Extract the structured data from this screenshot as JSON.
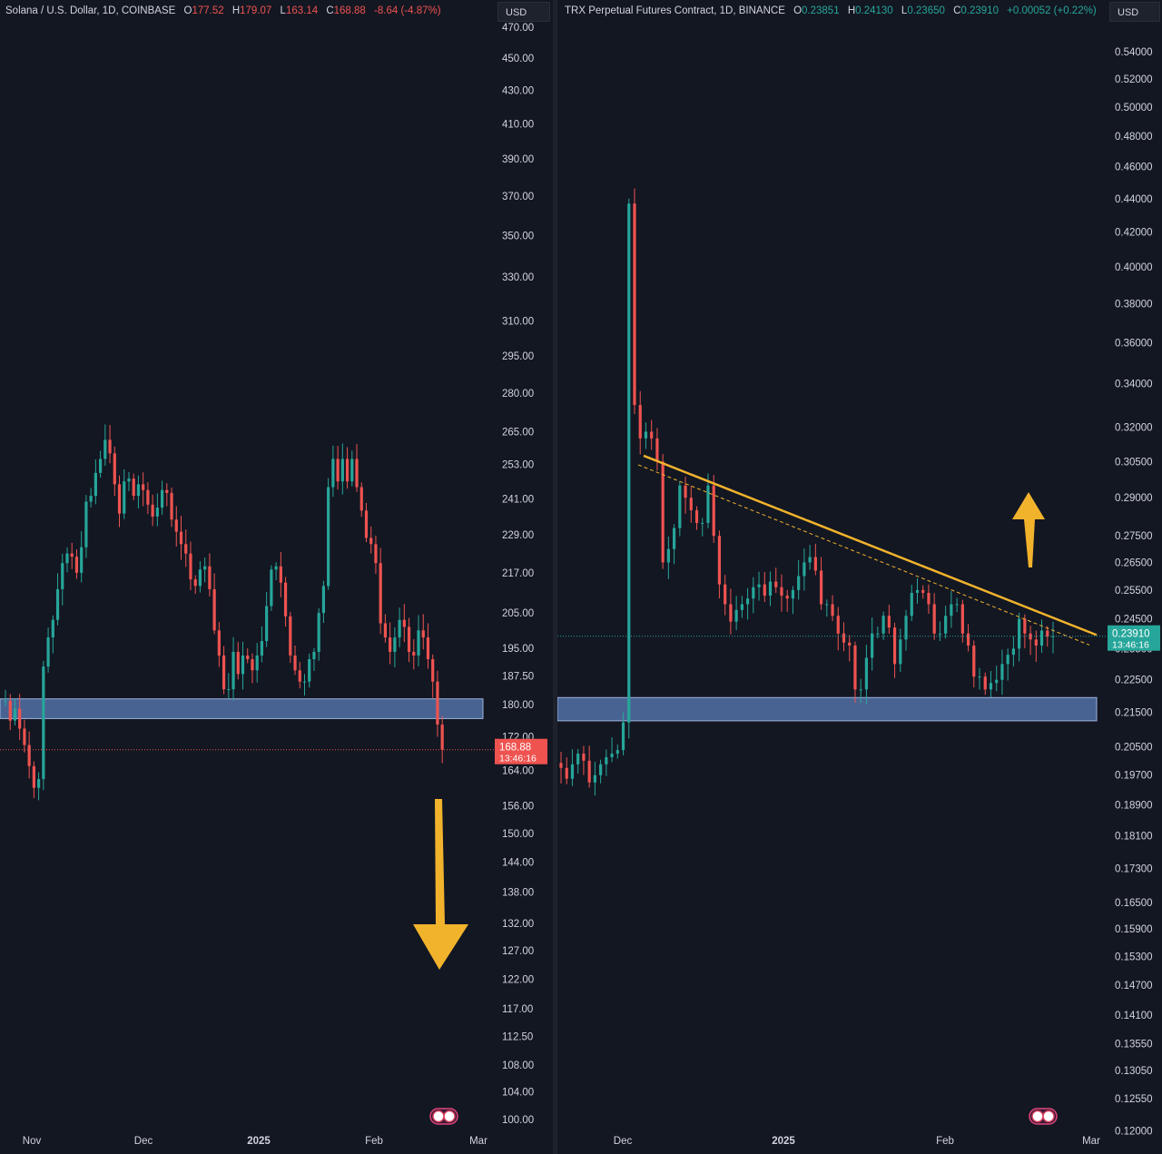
{
  "chart_data": [
    {
      "type": "candlestick",
      "title": "Solana / U.S. Dollar, 1D, COINBASE",
      "ohlc": {
        "O": "177.52",
        "H": "179.07",
        "L": "163.14",
        "C": "168.88",
        "change": "-8.64 (-4.87%)"
      },
      "currency": "USD",
      "scale": "log",
      "y_ticks": [
        "470.00",
        "450.00",
        "430.00",
        "410.00",
        "390.00",
        "370.00",
        "350.00",
        "330.00",
        "310.00",
        "295.00",
        "280.00",
        "265.00",
        "253.00",
        "241.00",
        "229.00",
        "217.00",
        "205.00",
        "195.00",
        "187.50",
        "180.00",
        "172.00",
        "164.00",
        "156.00",
        "150.00",
        "144.00",
        "138.00",
        "132.00",
        "127.00",
        "122.00",
        "117.00",
        "112.50",
        "108.00",
        "104.00",
        "100.00"
      ],
      "x_ticks": [
        "Nov",
        "Dec",
        "2025",
        "Feb",
        "Mar"
      ],
      "last_price": "168.88",
      "countdown": "13:46:16",
      "support_zone": [
        176.5,
        181.5
      ],
      "closes": [
        181,
        176,
        179,
        174,
        170,
        165,
        160,
        162,
        190,
        198,
        203,
        212,
        220,
        223,
        222,
        217,
        225,
        240,
        242,
        250,
        255,
        262,
        257,
        246,
        236,
        247,
        248,
        242,
        246,
        244,
        239,
        235,
        238,
        244,
        243,
        234,
        230,
        226,
        223,
        215,
        213,
        218,
        219,
        212,
        200,
        193,
        184,
        184,
        194,
        188,
        193,
        192,
        189,
        193,
        197,
        207,
        218,
        219,
        214,
        204,
        193,
        189,
        186,
        186,
        192,
        194,
        205,
        213,
        245,
        255,
        247,
        255,
        247,
        255,
        245,
        237,
        228,
        226,
        220,
        202,
        198,
        194,
        198,
        203,
        201,
        194,
        193,
        200,
        198,
        192,
        186,
        175,
        168.88
      ]
    },
    {
      "type": "candlestick",
      "title": "TRX Perpetual Futures Contract, 1D, BINANCE",
      "ohlc": {
        "O": "0.23851",
        "H": "0.24130",
        "L": "0.23650",
        "C": "0.23910",
        "change": "+0.00052 (+0.22%)"
      },
      "currency": "USD",
      "scale": "log",
      "y_ticks": [
        "0.54000",
        "0.52000",
        "0.50000",
        "0.48000",
        "0.46000",
        "0.44000",
        "0.42000",
        "0.40000",
        "0.38000",
        "0.36000",
        "0.34000",
        "0.32000",
        "0.30500",
        "0.29000",
        "0.27500",
        "0.26500",
        "0.25500",
        "0.24500",
        "0.23500",
        "0.22500",
        "0.21500",
        "0.20500",
        "0.19700",
        "0.18900",
        "0.18100",
        "0.17300",
        "0.16500",
        "0.15900",
        "0.15300",
        "0.14700",
        "0.14100",
        "0.13550",
        "0.13050",
        "0.12550",
        "0.12000"
      ],
      "x_ticks": [
        "Dec",
        "2025",
        "Feb",
        "Mar"
      ],
      "last_price": "0.23910",
      "countdown": "13:46:16",
      "support_zone": [
        0.2125,
        0.2195
      ],
      "closes": [
        0.199,
        0.196,
        0.2,
        0.203,
        0.201,
        0.195,
        0.197,
        0.2,
        0.202,
        0.203,
        0.204,
        0.212,
        0.437,
        0.33,
        0.315,
        0.318,
        0.315,
        0.305,
        0.265,
        0.27,
        0.278,
        0.295,
        0.29,
        0.285,
        0.28,
        0.28,
        0.295,
        0.275,
        0.257,
        0.25,
        0.244,
        0.248,
        0.25,
        0.252,
        0.256,
        0.257,
        0.253,
        0.258,
        0.256,
        0.253,
        0.252,
        0.255,
        0.26,
        0.265,
        0.267,
        0.262,
        0.25,
        0.25,
        0.246,
        0.24,
        0.237,
        0.236,
        0.222,
        0.222,
        0.232,
        0.24,
        0.24,
        0.246,
        0.242,
        0.23,
        0.238,
        0.246,
        0.254,
        0.255,
        0.254,
        0.25,
        0.24,
        0.24,
        0.246,
        0.25,
        0.25,
        0.24,
        0.236,
        0.226,
        0.226,
        0.222,
        0.224,
        0.225,
        0.23,
        0.233,
        0.235,
        0.245,
        0.24,
        0.238,
        0.236,
        0.241,
        0.239,
        0.2391
      ]
    }
  ],
  "colors": {
    "up": "#26a69a",
    "down": "#ef5350",
    "zone": "#5b7db8",
    "trend": "#f2b32c",
    "background": "#131722"
  }
}
